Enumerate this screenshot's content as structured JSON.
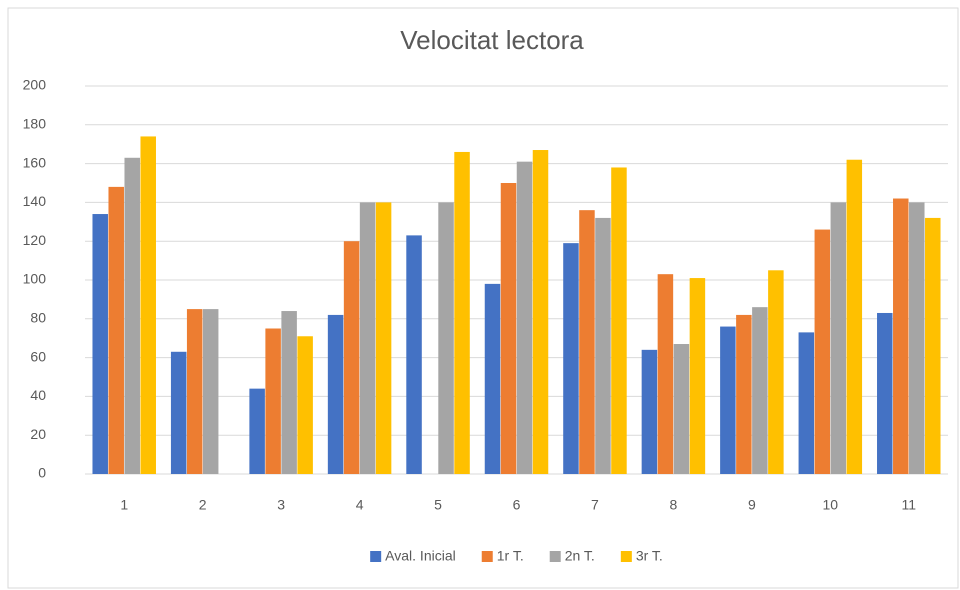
{
  "chart_data": {
    "type": "bar",
    "title": "Velocitat lectora",
    "categories": [
      "1",
      "2",
      "3",
      "4",
      "5",
      "6",
      "7",
      "8",
      "9",
      "10",
      "11"
    ],
    "series": [
      {
        "name": "Aval. Inicial",
        "color": "#4472c4",
        "values": [
          134,
          63,
          44,
          82,
          123,
          98,
          119,
          64,
          76,
          73,
          83
        ]
      },
      {
        "name": "1r T.",
        "color": "#ed7d31",
        "values": [
          148,
          85,
          75,
          120,
          null,
          150,
          136,
          103,
          82,
          126,
          142
        ]
      },
      {
        "name": "2n T.",
        "color": "#a5a5a5",
        "values": [
          163,
          85,
          84,
          140,
          140,
          161,
          132,
          67,
          86,
          140,
          140
        ]
      },
      {
        "name": "3r T.",
        "color": "#ffc000",
        "values": [
          174,
          null,
          71,
          140,
          166,
          167,
          158,
          101,
          105,
          162,
          132
        ]
      }
    ],
    "ylim": [
      0,
      200
    ],
    "yticks": [
      0,
      20,
      40,
      60,
      80,
      100,
      120,
      140,
      160,
      180,
      200
    ],
    "grid": true,
    "legend": "bottom"
  }
}
